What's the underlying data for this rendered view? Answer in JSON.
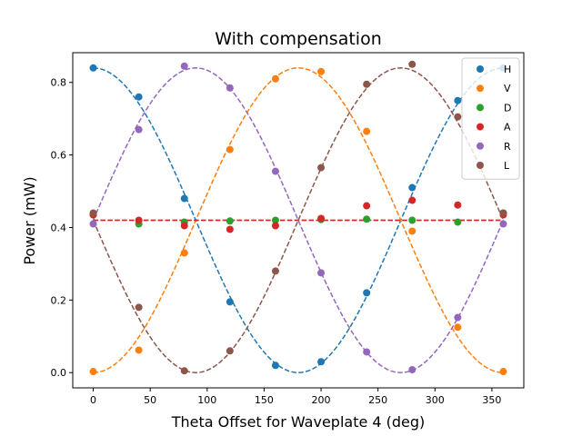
{
  "chart_data": {
    "type": "scatter",
    "title": "With compensation",
    "xlabel": "Theta Offset for Waveplate 4 (deg)",
    "ylabel": "Power (mW)",
    "xlim": [
      -18,
      378
    ],
    "ylim": [
      -0.042,
      0.882
    ],
    "xticks": [
      0,
      50,
      100,
      150,
      200,
      250,
      300,
      350
    ],
    "yticks": [
      0.0,
      0.2,
      0.4,
      0.6,
      0.8
    ],
    "ytick_labels": [
      "0.0",
      "0.2",
      "0.4",
      "0.6",
      "0.8"
    ],
    "legend_position": "top-right",
    "grid": false,
    "fit_lines": "dashed",
    "series": [
      {
        "name": "H",
        "color": "#1f77b4",
        "points": [
          [
            0,
            0.84
          ],
          [
            40,
            0.76
          ],
          [
            80,
            0.48
          ],
          [
            120,
            0.195
          ],
          [
            160,
            0.02
          ],
          [
            200,
            0.03
          ],
          [
            240,
            0.22
          ],
          [
            280,
            0.51
          ],
          [
            320,
            0.75
          ],
          [
            360,
            0.84
          ]
        ],
        "fit": {
          "kind": "cos",
          "offset": 0.42,
          "amp": 0.42,
          "phase": 0
        }
      },
      {
        "name": "V",
        "color": "#ff7f0e",
        "points": [
          [
            0,
            0.003
          ],
          [
            40,
            0.062
          ],
          [
            80,
            0.33
          ],
          [
            120,
            0.615
          ],
          [
            160,
            0.81
          ],
          [
            200,
            0.83
          ],
          [
            240,
            0.665
          ],
          [
            280,
            0.39
          ],
          [
            320,
            0.125
          ],
          [
            360,
            0.003
          ]
        ],
        "fit": {
          "kind": "cos",
          "offset": 0.42,
          "amp": -0.42,
          "phase": 0
        }
      },
      {
        "name": "D",
        "color": "#2ca02c",
        "points": [
          [
            0,
            0.435
          ],
          [
            40,
            0.41
          ],
          [
            80,
            0.415
          ],
          [
            120,
            0.418
          ],
          [
            160,
            0.42
          ],
          [
            200,
            0.422
          ],
          [
            240,
            0.423
          ],
          [
            280,
            0.42
          ],
          [
            320,
            0.415
          ],
          [
            360,
            0.44
          ]
        ],
        "fit": {
          "kind": "const",
          "value": 0.42
        }
      },
      {
        "name": "A",
        "color": "#d62728",
        "points": [
          [
            0,
            0.435
          ],
          [
            40,
            0.42
          ],
          [
            80,
            0.405
          ],
          [
            120,
            0.395
          ],
          [
            160,
            0.405
          ],
          [
            200,
            0.425
          ],
          [
            240,
            0.46
          ],
          [
            280,
            0.475
          ],
          [
            320,
            0.462
          ],
          [
            360,
            0.435
          ]
        ],
        "fit": {
          "kind": "const",
          "value": 0.42
        }
      },
      {
        "name": "R",
        "color": "#9467bd",
        "points": [
          [
            0,
            0.41
          ],
          [
            40,
            0.67
          ],
          [
            80,
            0.845
          ],
          [
            120,
            0.785
          ],
          [
            160,
            0.555
          ],
          [
            200,
            0.275
          ],
          [
            240,
            0.057
          ],
          [
            280,
            0.008
          ],
          [
            320,
            0.152
          ],
          [
            360,
            0.41
          ]
        ],
        "fit": {
          "kind": "sin",
          "offset": 0.42,
          "amp": 0.42
        }
      },
      {
        "name": "L",
        "color": "#8c564b",
        "points": [
          [
            0,
            0.44
          ],
          [
            40,
            0.18
          ],
          [
            80,
            0.005
          ],
          [
            120,
            0.06
          ],
          [
            160,
            0.28
          ],
          [
            200,
            0.565
          ],
          [
            240,
            0.795
          ],
          [
            280,
            0.85
          ],
          [
            320,
            0.705
          ],
          [
            360,
            0.44
          ]
        ],
        "fit": {
          "kind": "sin",
          "offset": 0.42,
          "amp": -0.42
        }
      }
    ]
  }
}
